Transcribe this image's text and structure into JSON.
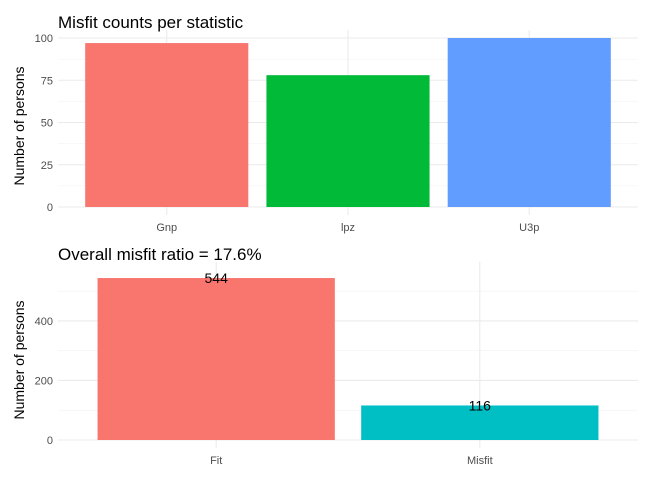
{
  "chart_data": [
    {
      "type": "bar",
      "title": "Misfit counts per statistic",
      "xlabel": "",
      "ylabel": "Number of persons",
      "categories": [
        "Gnp",
        "lpz",
        "U3p"
      ],
      "values": [
        97,
        78,
        100
      ],
      "colors": [
        "#F8766D",
        "#00BA38",
        "#619CFF"
      ],
      "yticks": [
        0,
        25,
        50,
        75,
        100
      ],
      "ylim": [
        0,
        100
      ],
      "grid": true,
      "legend": "none",
      "data_labels": []
    },
    {
      "type": "bar",
      "title": "Overall misfit ratio = 17.6%",
      "xlabel": "",
      "ylabel": "Number of persons",
      "categories": [
        "Fit",
        "Misfit"
      ],
      "values": [
        544,
        116
      ],
      "colors": [
        "#F8766D",
        "#00BFC4"
      ],
      "yticks": [
        0,
        200,
        400
      ],
      "ylim": [
        0,
        571
      ],
      "grid": true,
      "legend": "none",
      "data_labels": [
        "544",
        "116"
      ]
    }
  ]
}
